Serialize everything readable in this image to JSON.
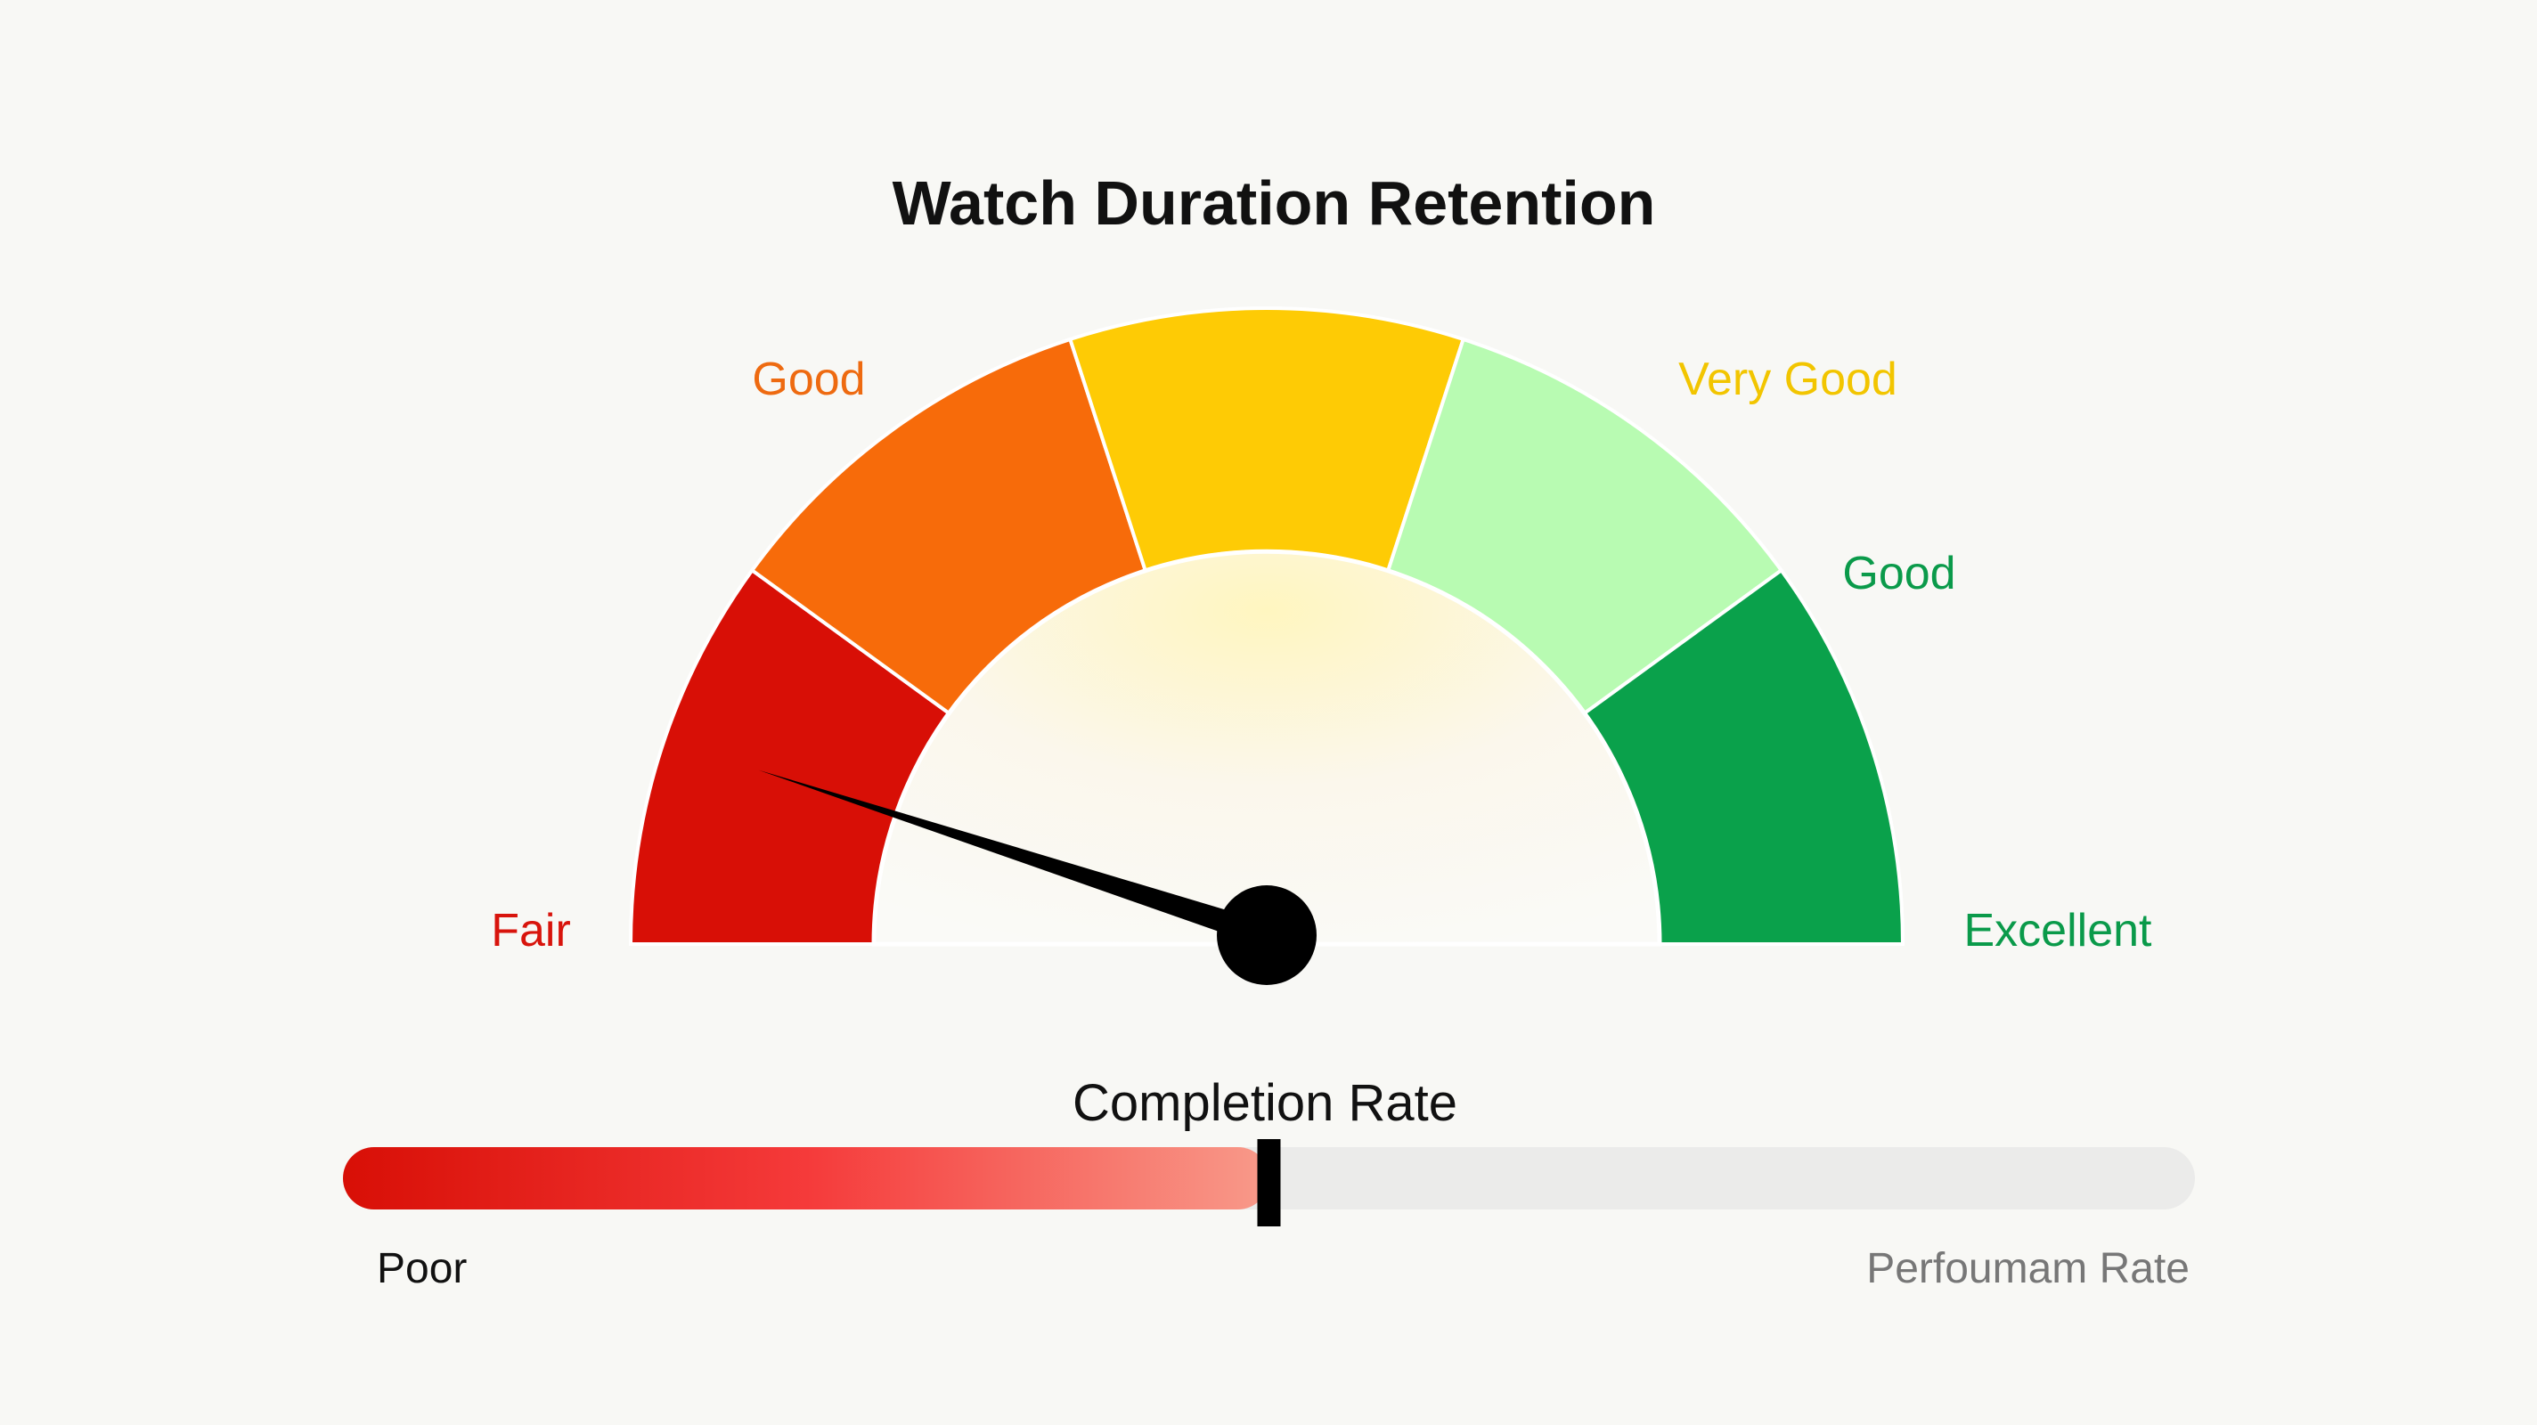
{
  "chart_data": {
    "type": "gauge",
    "title": "Watch Duration Retention",
    "range": [
      0,
      100
    ],
    "needle_value": 10,
    "segments": [
      {
        "label": "Fair",
        "color": "#d80f06",
        "label_color": "#d8140c"
      },
      {
        "label": "Good",
        "color": "#f76b0a",
        "label_color": "#ee6a10"
      },
      {
        "label": "",
        "color": "#fecb05",
        "label_color": "#f2c500"
      },
      {
        "label": "Very Good",
        "color": "#b8fbb2",
        "label_color": "#f2c500"
      },
      {
        "label": "Good",
        "color": "#0aa14b",
        "label_color": "#0a9a4a"
      }
    ],
    "end_label": "Excellent",
    "end_label_color": "#0a9a4a",
    "bar": {
      "title": "Completion Rate",
      "value_percent": 50,
      "left_label": "Poor",
      "right_label": "Perfoumam Rate",
      "fill_from": "#d80f06",
      "fill_to": "#f89a8a",
      "track_color": "#ebebea"
    }
  }
}
